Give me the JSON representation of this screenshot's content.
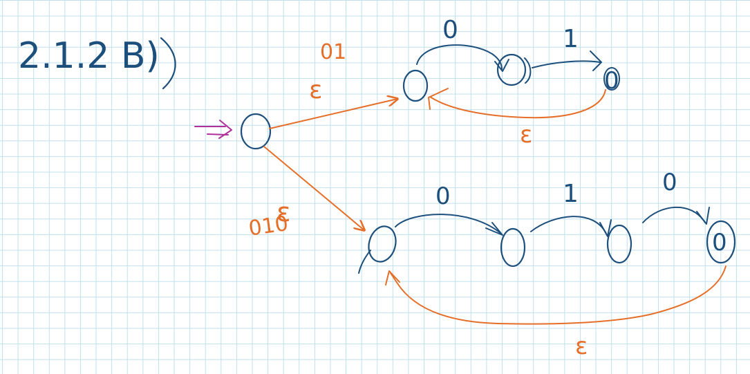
{
  "title": "2.1.2 B)",
  "colors": {
    "blue": "#1d4f7c",
    "orange": "#e56f28",
    "magenta": "#b0309a",
    "grid": "#bfe0ee"
  },
  "labels": {
    "upper_branch_label": "01",
    "upper_branch_epsilon": "ε",
    "lower_branch_label": "010",
    "lower_branch_epsilon": "ε",
    "upper_t1": "0",
    "upper_t2": "1",
    "upper_accept": "0",
    "upper_back_epsilon": "ε",
    "lower_t1": "0",
    "lower_t2": "1",
    "lower_t3": "0",
    "lower_accept": "0",
    "lower_back_epsilon": "ε"
  }
}
